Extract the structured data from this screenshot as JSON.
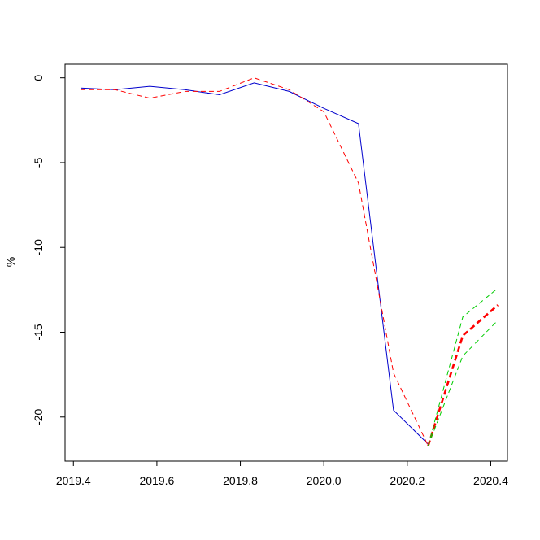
{
  "chart_data": {
    "type": "line",
    "title": "",
    "xlabel": "",
    "ylabel": "%",
    "xlim": [
      2019.38,
      2020.44
    ],
    "ylim": [
      -22.6,
      0.8
    ],
    "xticks": [
      2019.4,
      2019.6,
      2019.8,
      2020.0,
      2020.2,
      2020.4
    ],
    "xtick_labels": [
      "2019.4",
      "2019.6",
      "2019.8",
      "2020.0",
      "2020.2",
      "2020.4"
    ],
    "yticks": [
      0,
      -5,
      -10,
      -15,
      -20
    ],
    "ytick_labels": [
      "0",
      "-5",
      "-10",
      "-15",
      "-20"
    ],
    "grid": false,
    "legend": false,
    "series": [
      {
        "color": "#0000cc",
        "style": "solid",
        "x": [
          2019.417,
          2019.5,
          2019.583,
          2019.667,
          2019.75,
          2019.833,
          2019.917,
          2020.0,
          2020.083,
          2020.167,
          2020.25
        ],
        "y": [
          -0.6,
          -0.7,
          -0.5,
          -0.7,
          -1.0,
          -0.3,
          -0.8,
          -1.8,
          -2.7,
          -19.6,
          -21.6
        ]
      },
      {
        "color": "#ff0000",
        "style": "dashed",
        "x": [
          2019.417,
          2019.5,
          2019.583,
          2019.667,
          2019.75,
          2019.833,
          2019.917,
          2020.0,
          2020.083,
          2020.167,
          2020.25
        ],
        "y": [
          -0.7,
          -0.7,
          -1.2,
          -0.8,
          -0.8,
          0.0,
          -0.7,
          -2.0,
          -6.2,
          -17.4,
          -21.7
        ]
      },
      {
        "color": "#ff0000",
        "style": "dashed-bold",
        "x": [
          2020.25,
          2020.333,
          2020.417
        ],
        "y": [
          -21.7,
          -15.2,
          -13.4
        ]
      },
      {
        "color": "#00cc00",
        "style": "dashed",
        "x": [
          2020.25,
          2020.333,
          2020.417
        ],
        "y": [
          -21.7,
          -14.1,
          -12.4
        ]
      },
      {
        "color": "#00cc00",
        "style": "dashed",
        "x": [
          2020.25,
          2020.333,
          2020.417
        ],
        "y": [
          -21.7,
          -16.4,
          -14.3
        ]
      }
    ]
  }
}
